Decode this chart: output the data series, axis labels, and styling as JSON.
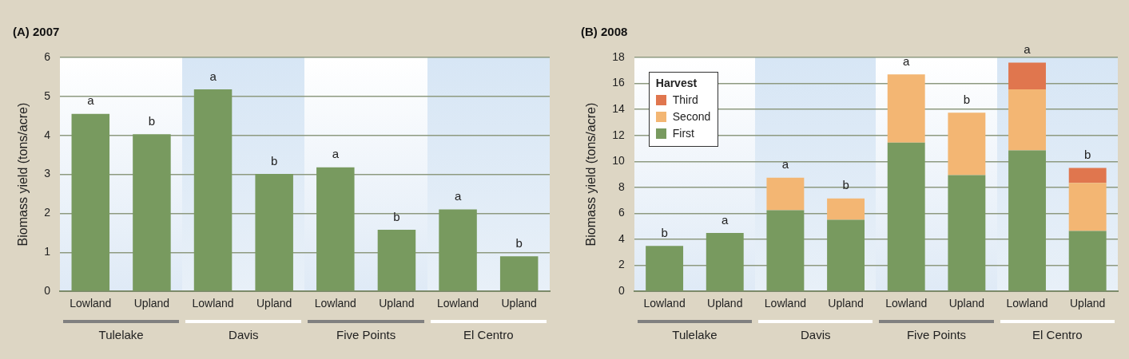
{
  "chart_data": [
    {
      "type": "bar",
      "title": "(A) 2007",
      "ylabel": "Biomass yield (tons/acre)",
      "categories": [
        "Lowland",
        "Upland",
        "Lowland",
        "Upland",
        "Lowland",
        "Upland",
        "Lowland",
        "Upland"
      ],
      "values": [
        4.55,
        4.03,
        5.18,
        3.01,
        3.18,
        1.58,
        2.1,
        0.9
      ],
      "color": "#789a5f",
      "value_labels": [
        "a",
        "b",
        "a",
        "b",
        "a",
        "b",
        "a",
        "b"
      ],
      "ylim": [
        0,
        6
      ],
      "yticks": [
        0,
        1,
        2,
        3,
        4,
        5,
        6
      ],
      "grid": "y",
      "annotations": [
        "Tulelake",
        "Davis",
        "Five Points",
        "El Centro"
      ]
    },
    {
      "type": "bar",
      "title": "(B) 2008",
      "ylabel": "Biomass yield (tons/acre)",
      "stacked": true,
      "categories": [
        "Lowland",
        "Upland",
        "Lowland",
        "Upland",
        "Lowland",
        "Upland",
        "Lowland",
        "Upland"
      ],
      "series": [
        {
          "name": "First",
          "color": "#789a5f",
          "values": [
            3.5,
            4.5,
            6.25,
            5.5,
            11.45,
            8.95,
            10.85,
            4.65
          ]
        },
        {
          "name": "Second",
          "color": "#f3b673",
          "values": [
            null,
            null,
            2.5,
            1.65,
            5.25,
            4.8,
            4.7,
            3.7
          ]
        },
        {
          "name": "Third",
          "color": "#e0764e",
          "values": [
            null,
            null,
            null,
            null,
            null,
            null,
            2.05,
            1.15
          ]
        }
      ],
      "value_labels": [
        "b",
        "a",
        "a",
        "b",
        "a",
        "b",
        "a",
        "b"
      ],
      "legend_title": "Harvest",
      "legend": "top left",
      "ylim": [
        0,
        18
      ],
      "yticks": [
        0,
        2,
        4,
        6,
        8,
        10,
        12,
        14,
        16,
        18
      ],
      "grid": "y",
      "annotations": [
        "Tulelake",
        "Davis",
        "Five Points",
        "El Centro"
      ]
    }
  ]
}
